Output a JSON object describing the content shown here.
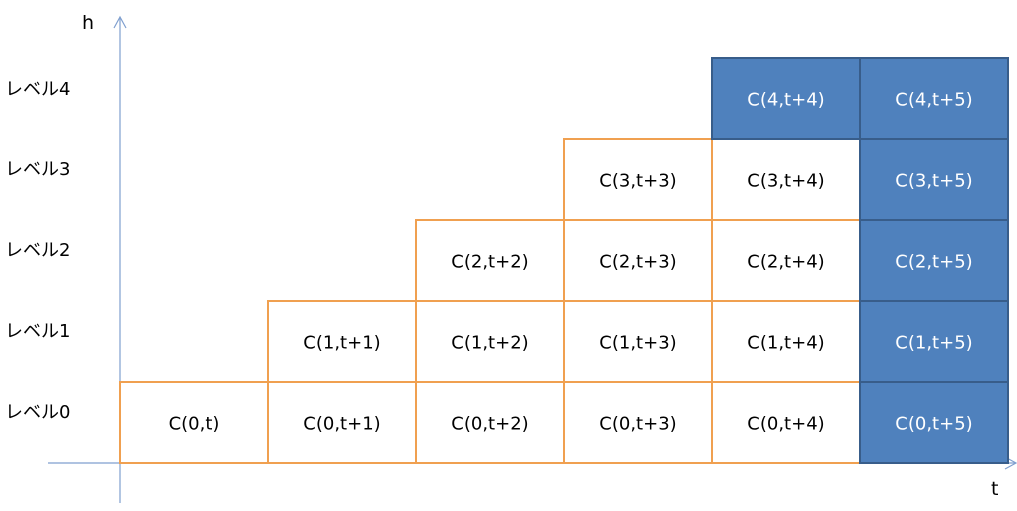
{
  "axes": {
    "y_label": "h",
    "x_label": "t",
    "axis_color": "#7f9fcf"
  },
  "levels": [
    "レベル0",
    "レベル1",
    "レベル2",
    "レベル3",
    "レベル4"
  ],
  "colors": {
    "white_fill": "#ffffff",
    "white_border": "#f0a050",
    "white_text": "#000000",
    "blue_fill": "#4f81bd",
    "blue_border": "#385d8a",
    "blue_text": "#ffffff"
  },
  "rows": [
    {
      "level": 0,
      "cells": [
        {
          "label": "C(0,t)",
          "highlight": false
        },
        {
          "label": "C(0,t+1)",
          "highlight": false
        },
        {
          "label": "C(0,t+2)",
          "highlight": false
        },
        {
          "label": "C(0,t+3)",
          "highlight": false
        },
        {
          "label": "C(0,t+4)",
          "highlight": false
        },
        {
          "label": "C(0,t+5)",
          "highlight": true
        }
      ]
    },
    {
      "level": 1,
      "cells": [
        {
          "label": "C(1,t+1)",
          "highlight": false
        },
        {
          "label": "C(1,t+2)",
          "highlight": false
        },
        {
          "label": "C(1,t+3)",
          "highlight": false
        },
        {
          "label": "C(1,t+4)",
          "highlight": false
        },
        {
          "label": "C(1,t+5)",
          "highlight": true
        }
      ]
    },
    {
      "level": 2,
      "cells": [
        {
          "label": "C(2,t+2)",
          "highlight": false
        },
        {
          "label": "C(2,t+3)",
          "highlight": false
        },
        {
          "label": "C(2,t+4)",
          "highlight": false
        },
        {
          "label": "C(2,t+5)",
          "highlight": true
        }
      ]
    },
    {
      "level": 3,
      "cells": [
        {
          "label": "C(3,t+3)",
          "highlight": false
        },
        {
          "label": "C(3,t+4)",
          "highlight": false
        },
        {
          "label": "C(3,t+5)",
          "highlight": true
        }
      ]
    },
    {
      "level": 4,
      "cells": [
        {
          "label": "C(4,t+4)",
          "highlight": true
        },
        {
          "label": "C(4,t+5)",
          "highlight": true
        }
      ]
    }
  ]
}
